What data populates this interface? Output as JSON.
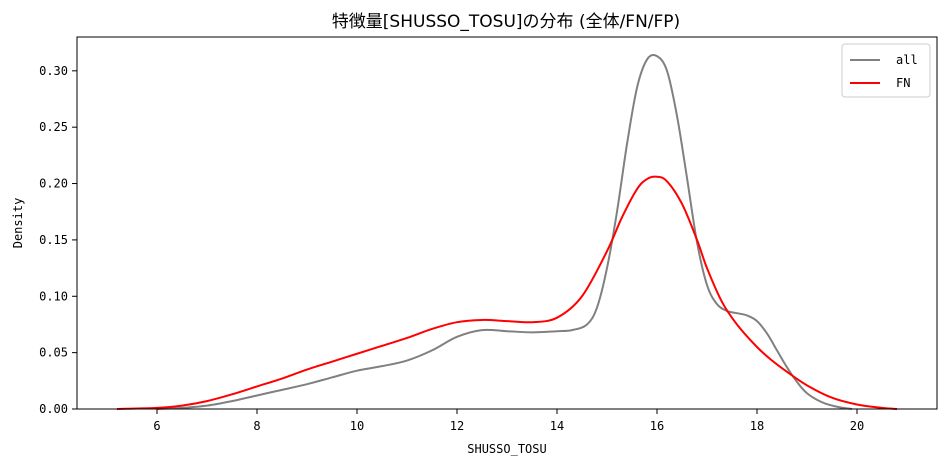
{
  "chart_data": {
    "type": "line",
    "title": "特徴量[SHUSSO_TOSU]の分布 (全体/FN/FP)",
    "xlabel": "SHUSSO_TOSU",
    "ylabel": "Density",
    "xlim": [
      4.4,
      21.6
    ],
    "ylim": [
      0,
      0.33
    ],
    "xticks": [
      6,
      8,
      10,
      12,
      14,
      16,
      18,
      20
    ],
    "yticks": [
      0.0,
      0.05,
      0.1,
      0.15,
      0.2,
      0.25,
      0.3
    ],
    "xtick_labels": [
      "6",
      "8",
      "10",
      "12",
      "14",
      "16",
      "18",
      "20"
    ],
    "ytick_labels": [
      "0.00",
      "0.05",
      "0.10",
      "0.15",
      "0.20",
      "0.25",
      "0.30"
    ],
    "grid": false,
    "legend_position": "top-right",
    "series": [
      {
        "name": "all",
        "color": "#808080",
        "x": [
          6.0,
          6.5,
          7.0,
          7.5,
          8.0,
          8.5,
          9.0,
          9.5,
          10.0,
          10.5,
          11.0,
          11.5,
          12.0,
          12.5,
          13.0,
          13.5,
          14.0,
          14.3,
          14.6,
          14.8,
          15.0,
          15.2,
          15.4,
          15.6,
          15.8,
          16.0,
          16.2,
          16.4,
          16.6,
          16.8,
          17.0,
          17.2,
          17.4,
          17.6,
          17.8,
          18.0,
          18.2,
          18.4,
          18.6,
          18.8,
          19.0,
          19.3,
          19.6,
          19.9
        ],
        "y": [
          0.0,
          0.001,
          0.003,
          0.007,
          0.012,
          0.017,
          0.022,
          0.028,
          0.034,
          0.038,
          0.043,
          0.052,
          0.064,
          0.07,
          0.069,
          0.068,
          0.069,
          0.07,
          0.075,
          0.09,
          0.125,
          0.175,
          0.235,
          0.285,
          0.31,
          0.313,
          0.3,
          0.26,
          0.205,
          0.148,
          0.11,
          0.093,
          0.087,
          0.085,
          0.083,
          0.078,
          0.067,
          0.052,
          0.037,
          0.024,
          0.014,
          0.006,
          0.002,
          0.0
        ]
      },
      {
        "name": "FN",
        "color": "#ff0000",
        "x": [
          5.2,
          6.0,
          6.5,
          7.0,
          7.5,
          8.0,
          8.5,
          9.0,
          9.5,
          10.0,
          10.5,
          11.0,
          11.5,
          12.0,
          12.5,
          13.0,
          13.5,
          14.0,
          14.5,
          15.0,
          15.3,
          15.6,
          15.8,
          16.0,
          16.2,
          16.5,
          16.8,
          17.0,
          17.3,
          17.6,
          18.0,
          18.3,
          18.6,
          19.0,
          19.5,
          20.0,
          20.5,
          20.8
        ],
        "y": [
          0.0,
          0.001,
          0.003,
          0.007,
          0.013,
          0.02,
          0.027,
          0.035,
          0.042,
          0.049,
          0.056,
          0.063,
          0.071,
          0.077,
          0.079,
          0.078,
          0.077,
          0.081,
          0.1,
          0.14,
          0.17,
          0.195,
          0.204,
          0.206,
          0.202,
          0.182,
          0.15,
          0.125,
          0.095,
          0.075,
          0.055,
          0.043,
          0.033,
          0.021,
          0.01,
          0.004,
          0.001,
          0.0
        ]
      }
    ]
  }
}
